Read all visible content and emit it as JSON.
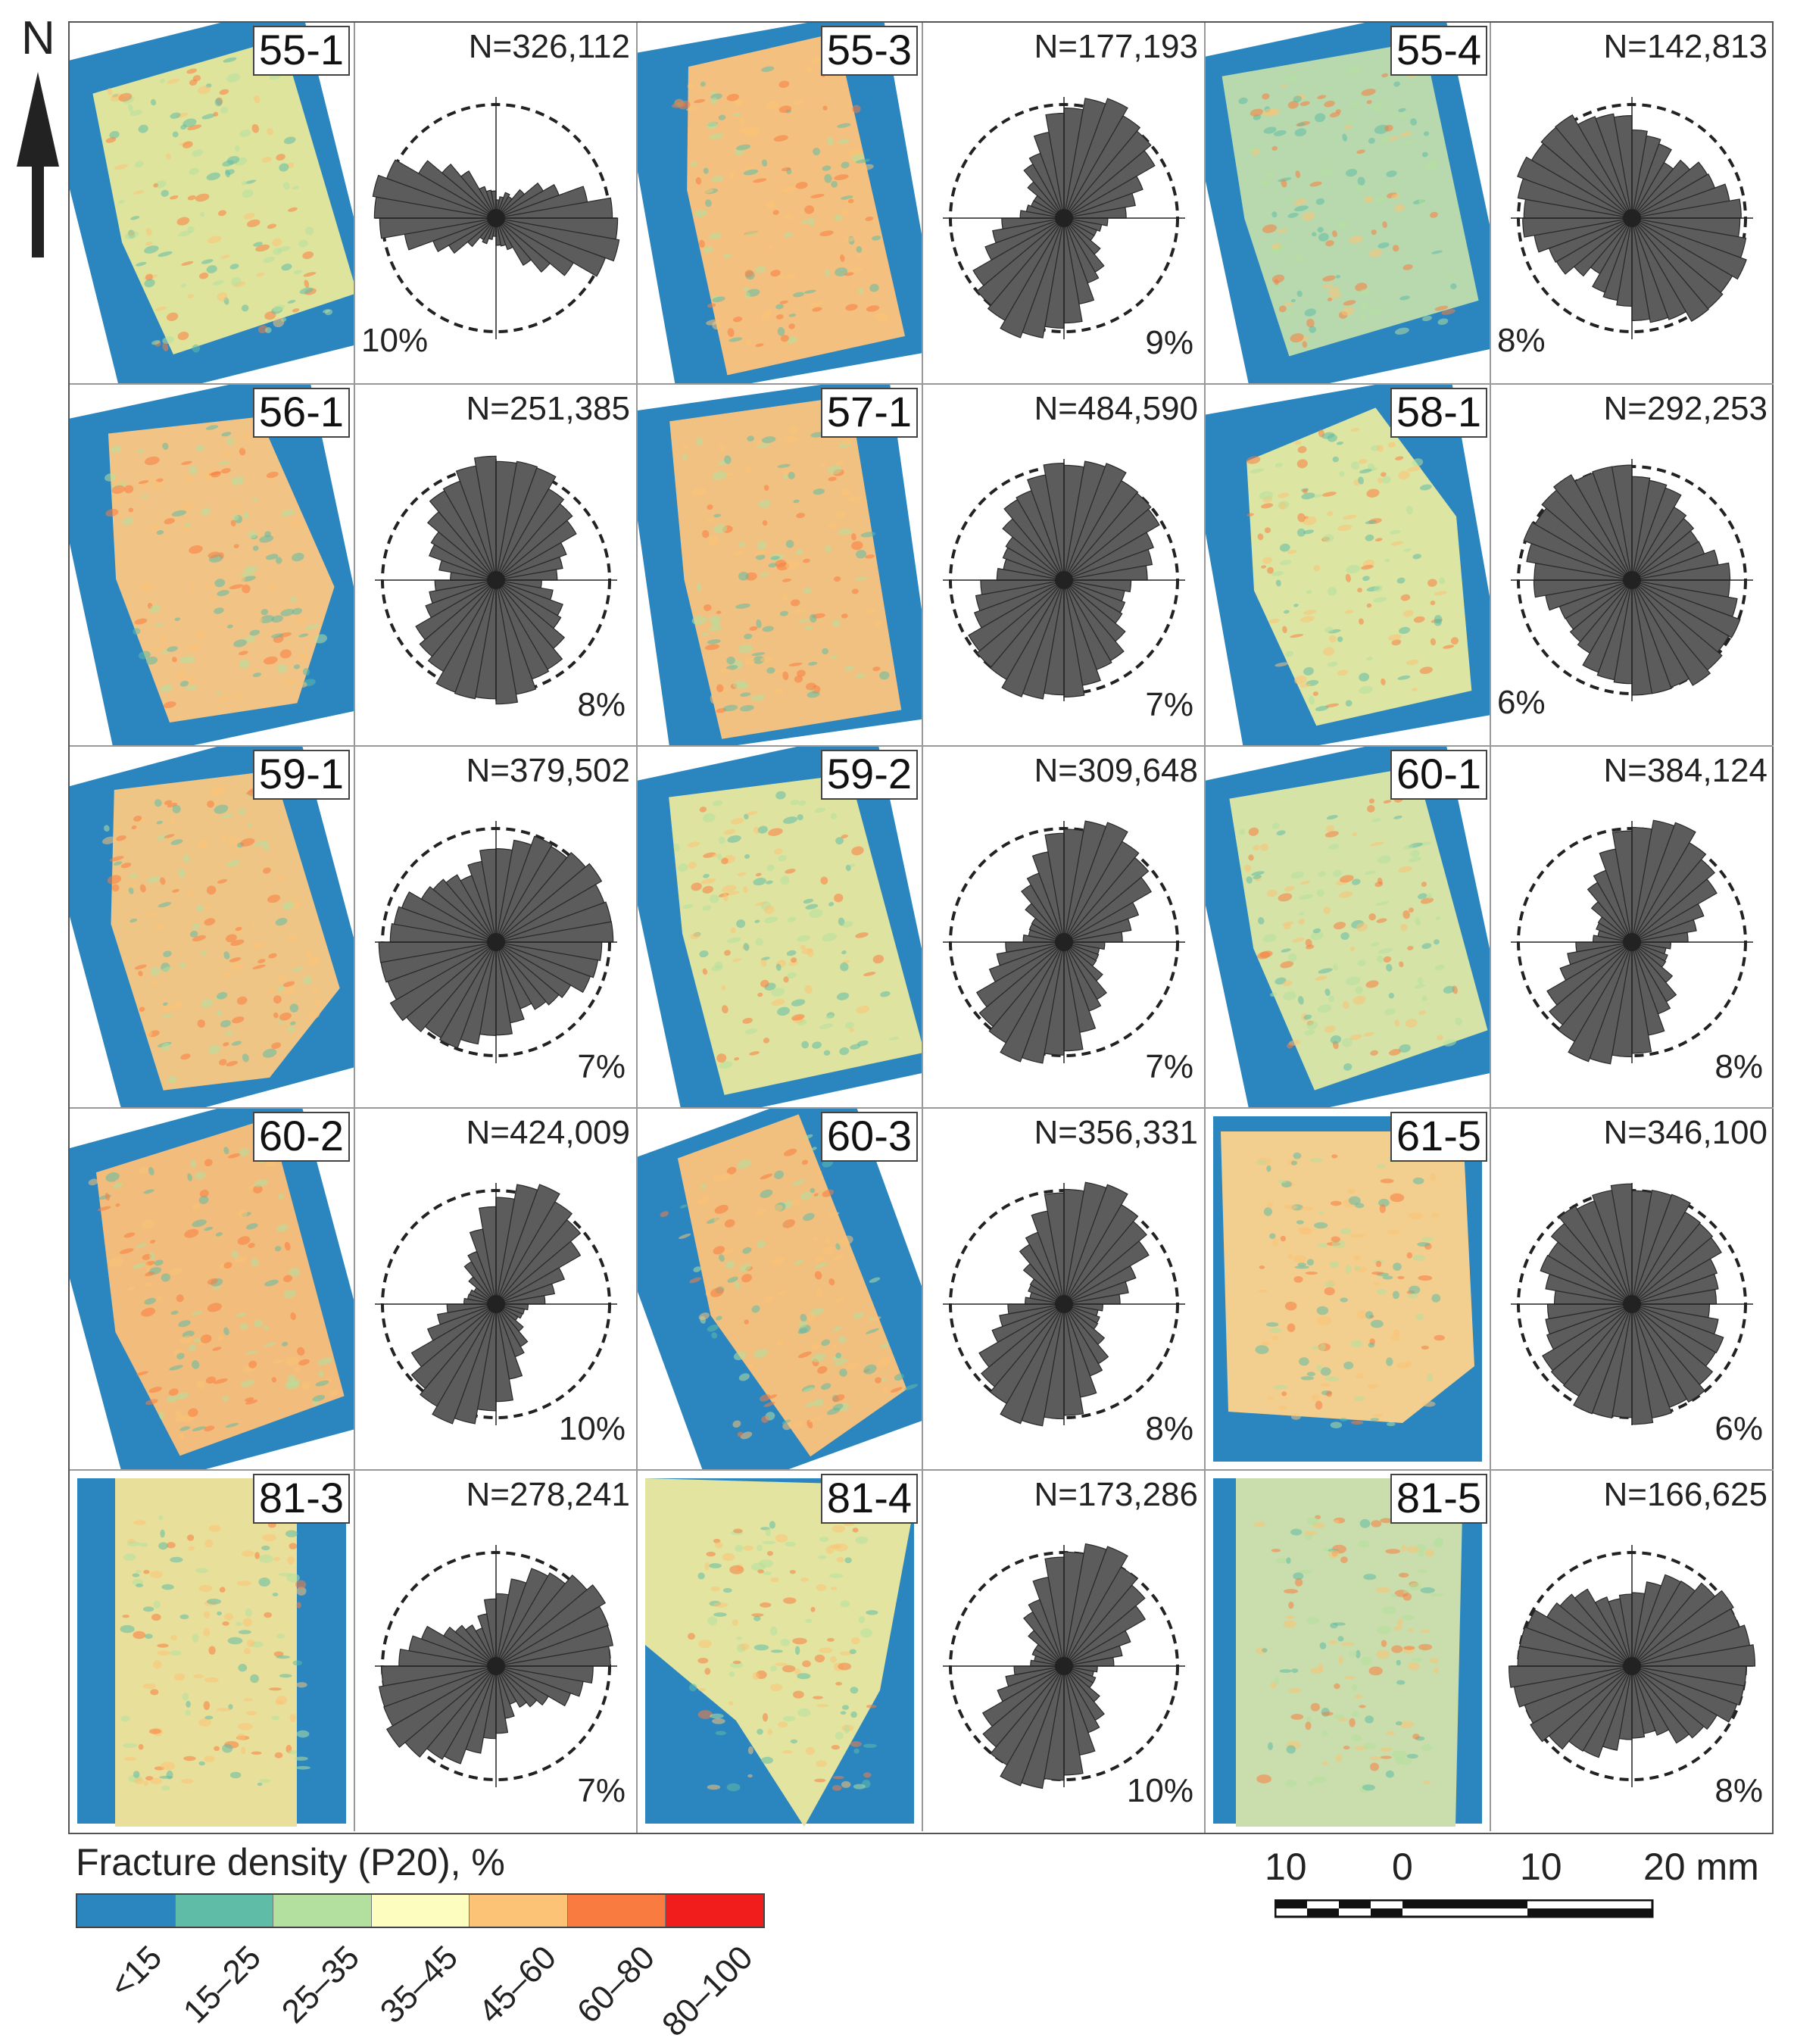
{
  "north_arrow": {
    "label": "N"
  },
  "panels": [
    {
      "id": "55-1",
      "n": "N=326,112",
      "pct": "10%",
      "pct_pos": "left",
      "strike": 100,
      "spread": 0.15,
      "fill": "#dfe49d"
    },
    {
      "id": "55-3",
      "n": "N=177,193",
      "pct": "9%",
      "pct_pos": "right",
      "strike": 25,
      "spread": 0.35,
      "fill": "#f3c07f"
    },
    {
      "id": "55-4",
      "n": "N=142,813",
      "pct": "8%",
      "pct_pos": "left",
      "strike": 125,
      "spread": 0.8,
      "fill": "#b8d9ad"
    },
    {
      "id": "56-1",
      "n": "N=251,385",
      "pct": "8%",
      "pct_pos": "right",
      "strike": 5,
      "spread": 0.55,
      "fill": "#f1c486"
    },
    {
      "id": "57-1",
      "n": "N=484,590",
      "pct": "7%",
      "pct_pos": "right",
      "strike": 20,
      "spread": 0.65,
      "fill": "#f1c182"
    },
    {
      "id": "58-1",
      "n": "N=292,253",
      "pct": "6%",
      "pct_pos": "left",
      "strike": 145,
      "spread": 0.9,
      "fill": "#dde5a3"
    },
    {
      "id": "59-1",
      "n": "N=379,502",
      "pct": "7%",
      "pct_pos": "right",
      "strike": 60,
      "spread": 0.85,
      "fill": "#efc586"
    },
    {
      "id": "59-2",
      "n": "N=309,648",
      "pct": "7%",
      "pct_pos": "right",
      "strike": 22,
      "spread": 0.35,
      "fill": "#dfe3a0"
    },
    {
      "id": "60-1",
      "n": "N=384,124",
      "pct": "8%",
      "pct_pos": "right",
      "strike": 20,
      "spread": 0.35,
      "fill": "#d6e3a6"
    },
    {
      "id": "60-2",
      "n": "N=424,009",
      "pct": "10%",
      "pct_pos": "right",
      "strike": 25,
      "spread": 0.25,
      "fill": "#f2bd7c"
    },
    {
      "id": "60-3",
      "n": "N=356,331",
      "pct": "8%",
      "pct_pos": "right",
      "strike": 20,
      "spread": 0.35,
      "fill": "#f1bf7e"
    },
    {
      "id": "61-5",
      "n": "N=346,100",
      "pct": "6%",
      "pct_pos": "right",
      "strike": 0,
      "spread": 1.0,
      "fill": "#f2cf8f"
    },
    {
      "id": "81-3",
      "n": "N=278,241",
      "pct": "7%",
      "pct_pos": "right",
      "strike": 60,
      "spread": 0.45,
      "fill": "#e8e09a"
    },
    {
      "id": "81-4",
      "n": "N=173,286",
      "pct": "10%",
      "pct_pos": "right",
      "strike": 20,
      "spread": 0.3,
      "fill": "#e2e4a0"
    },
    {
      "id": "81-5",
      "n": "N=166,625",
      "pct": "8%",
      "pct_pos": "right",
      "strike": 80,
      "spread": 0.75,
      "fill": "#c9deac"
    }
  ],
  "legend": {
    "title": "Fracture density (P20), %",
    "classes": [
      {
        "label": "<15",
        "color": "#2b86c0"
      },
      {
        "label": "15–25",
        "color": "#5fbca6"
      },
      {
        "label": "25–35",
        "color": "#b3e09e"
      },
      {
        "label": "35–45",
        "color": "#fdfdc0"
      },
      {
        "label": "45–60",
        "color": "#fcc275"
      },
      {
        "label": "60–80",
        "color": "#f97b3f"
      },
      {
        "label": "80–100",
        "color": "#f11d1d"
      }
    ]
  },
  "scale_bar": {
    "labels": [
      "10",
      "0",
      "10",
      "20 mm"
    ]
  }
}
